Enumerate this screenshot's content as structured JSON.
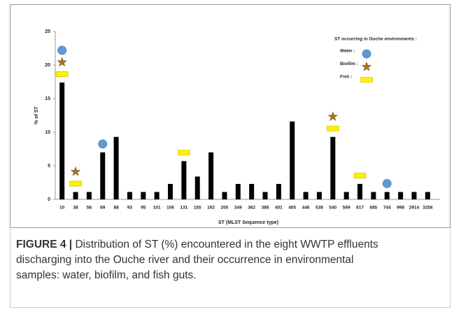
{
  "chart_data": {
    "type": "bar",
    "categories": [
      "10",
      "38",
      "58",
      "69",
      "88",
      "93",
      "95",
      "101",
      "106",
      "131",
      "155",
      "162",
      "205",
      "349",
      "362",
      "388",
      "401",
      "405",
      "446",
      "538",
      "540",
      "569",
      "617",
      "685",
      "744",
      "998",
      "2914",
      "3258"
    ],
    "values": [
      17.4,
      1.1,
      1.1,
      7.0,
      9.3,
      1.1,
      1.1,
      1.1,
      2.3,
      5.7,
      3.4,
      7.0,
      1.1,
      2.3,
      2.3,
      1.1,
      2.3,
      11.6,
      1.1,
      1.1,
      9.3,
      1.1,
      2.3,
      1.1,
      1.1,
      1.1,
      1.1,
      1.1
    ],
    "color": "#000000",
    "ylim": [
      0,
      25
    ],
    "yticks": [
      0,
      5,
      10,
      15,
      20,
      25
    ],
    "y_label": "% of ST",
    "x_label": "ST (MLST Sequence type)",
    "legend_title": "ST occurring in Ouche environments :",
    "occurrence": [
      {
        "name": "Fish :",
        "shape": "rect",
        "color": "#fff200",
        "stroke": "#d9c400",
        "categories": [
          "10",
          "38",
          "131",
          "540",
          "617"
        ]
      },
      {
        "name": "Biofilm :",
        "shape": "star",
        "color": "#a8782a",
        "stroke": "#8a6220",
        "categories": [
          "10",
          "38",
          "540"
        ]
      },
      {
        "name": "Water :",
        "shape": "circle",
        "color": "#5b9bd5",
        "stroke": "#4a86c0",
        "categories": [
          "10",
          "69",
          "744"
        ]
      }
    ]
  },
  "caption": {
    "label": "FIGURE 4 |",
    "lines": [
      " Distribution of ST (%) encountered in the eight WWTP effluents",
      "discharging into the Ouche river and their occurrence in environmental",
      "samples: water, biofilm, and fish guts."
    ]
  }
}
